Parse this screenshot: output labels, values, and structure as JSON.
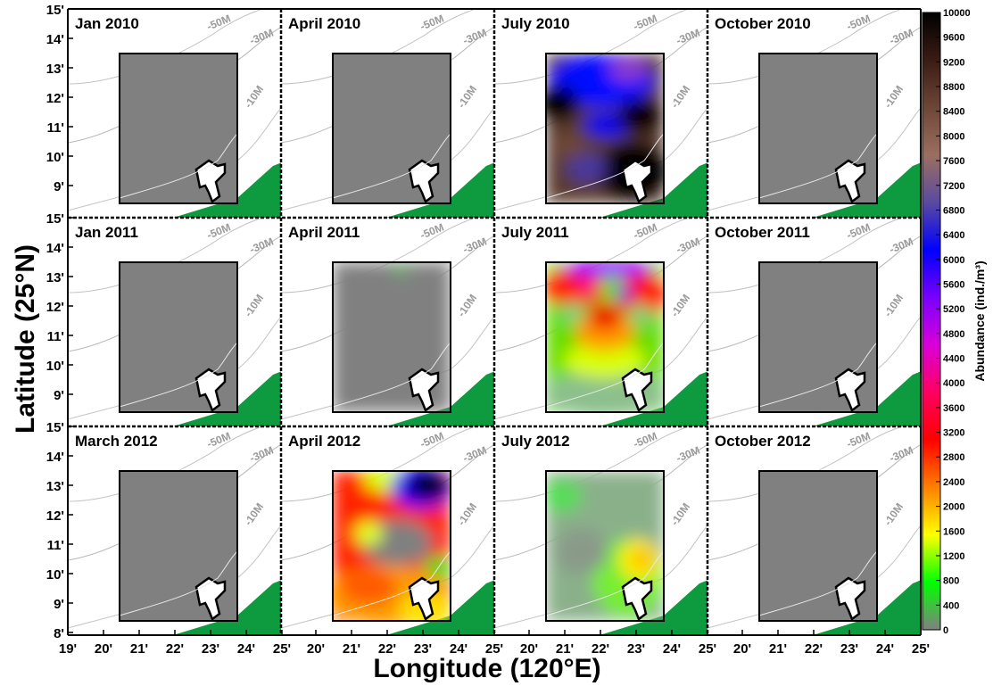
{
  "chart_data": {
    "type": "heatmap",
    "xlabel": "Longitude (120°E)",
    "ylabel": "Latitude (25°N)",
    "colorbar_label": "Abundance (ind./m³)",
    "x_ticks": [
      "19'",
      "20'",
      "21'",
      "22'",
      "23'",
      "24'",
      "25'",
      "20'",
      "21'",
      "22'",
      "23'",
      "24'",
      "25'",
      "20'",
      "21'",
      "22'",
      "23'",
      "24'",
      "25'",
      "20'",
      "21'",
      "22'",
      "23'",
      "24'",
      "25'"
    ],
    "y_ticks_top": [
      "15'",
      "14'",
      "13'",
      "12'",
      "11'",
      "10'",
      "9'"
    ],
    "y_ticks_mid": [
      "15'",
      "14'",
      "13'",
      "12'",
      "11'",
      "10'",
      "9'"
    ],
    "y_ticks_bottom": [
      "15'",
      "14'",
      "13'",
      "12'",
      "11'",
      "10'",
      "9'",
      "8'"
    ],
    "colorbar": {
      "min": 0,
      "max": 10000,
      "ticks": [
        "10000",
        "9600",
        "9200",
        "8800",
        "8400",
        "8000",
        "7600",
        "7200",
        "6800",
        "6400",
        "6000",
        "5600",
        "5200",
        "4800",
        "4400",
        "4000",
        "3600",
        "3200",
        "2800",
        "2400",
        "2000",
        "1600",
        "1200",
        "800",
        "400",
        "0"
      ],
      "stops": [
        "#000000",
        "#3a1c14",
        "#6e4637",
        "#9b6f60",
        "#5a4aa0",
        "#0000ff",
        "#7a00ff",
        "#d800d8",
        "#ff0060",
        "#ff0000",
        "#ff8000",
        "#ffff00",
        "#00ff00",
        "#808080"
      ]
    },
    "depth_labels": [
      "-50M",
      "-30M",
      "-10M"
    ],
    "panels": [
      {
        "title": "Jan 2010",
        "pattern": "none"
      },
      {
        "title": "April 2010",
        "pattern": "none"
      },
      {
        "title": "July 2010",
        "pattern": "high"
      },
      {
        "title": "October 2010",
        "pattern": "none"
      },
      {
        "title": "Jan 2011",
        "pattern": "none"
      },
      {
        "title": "April 2011",
        "pattern": "trace"
      },
      {
        "title": "July 2011",
        "pattern": "moderate"
      },
      {
        "title": "October 2011",
        "pattern": "none"
      },
      {
        "title": "March 2012",
        "pattern": "none"
      },
      {
        "title": "April 2012",
        "pattern": "patchy"
      },
      {
        "title": "July 2012",
        "pattern": "low"
      },
      {
        "title": "October 2012",
        "pattern": "none"
      }
    ]
  }
}
